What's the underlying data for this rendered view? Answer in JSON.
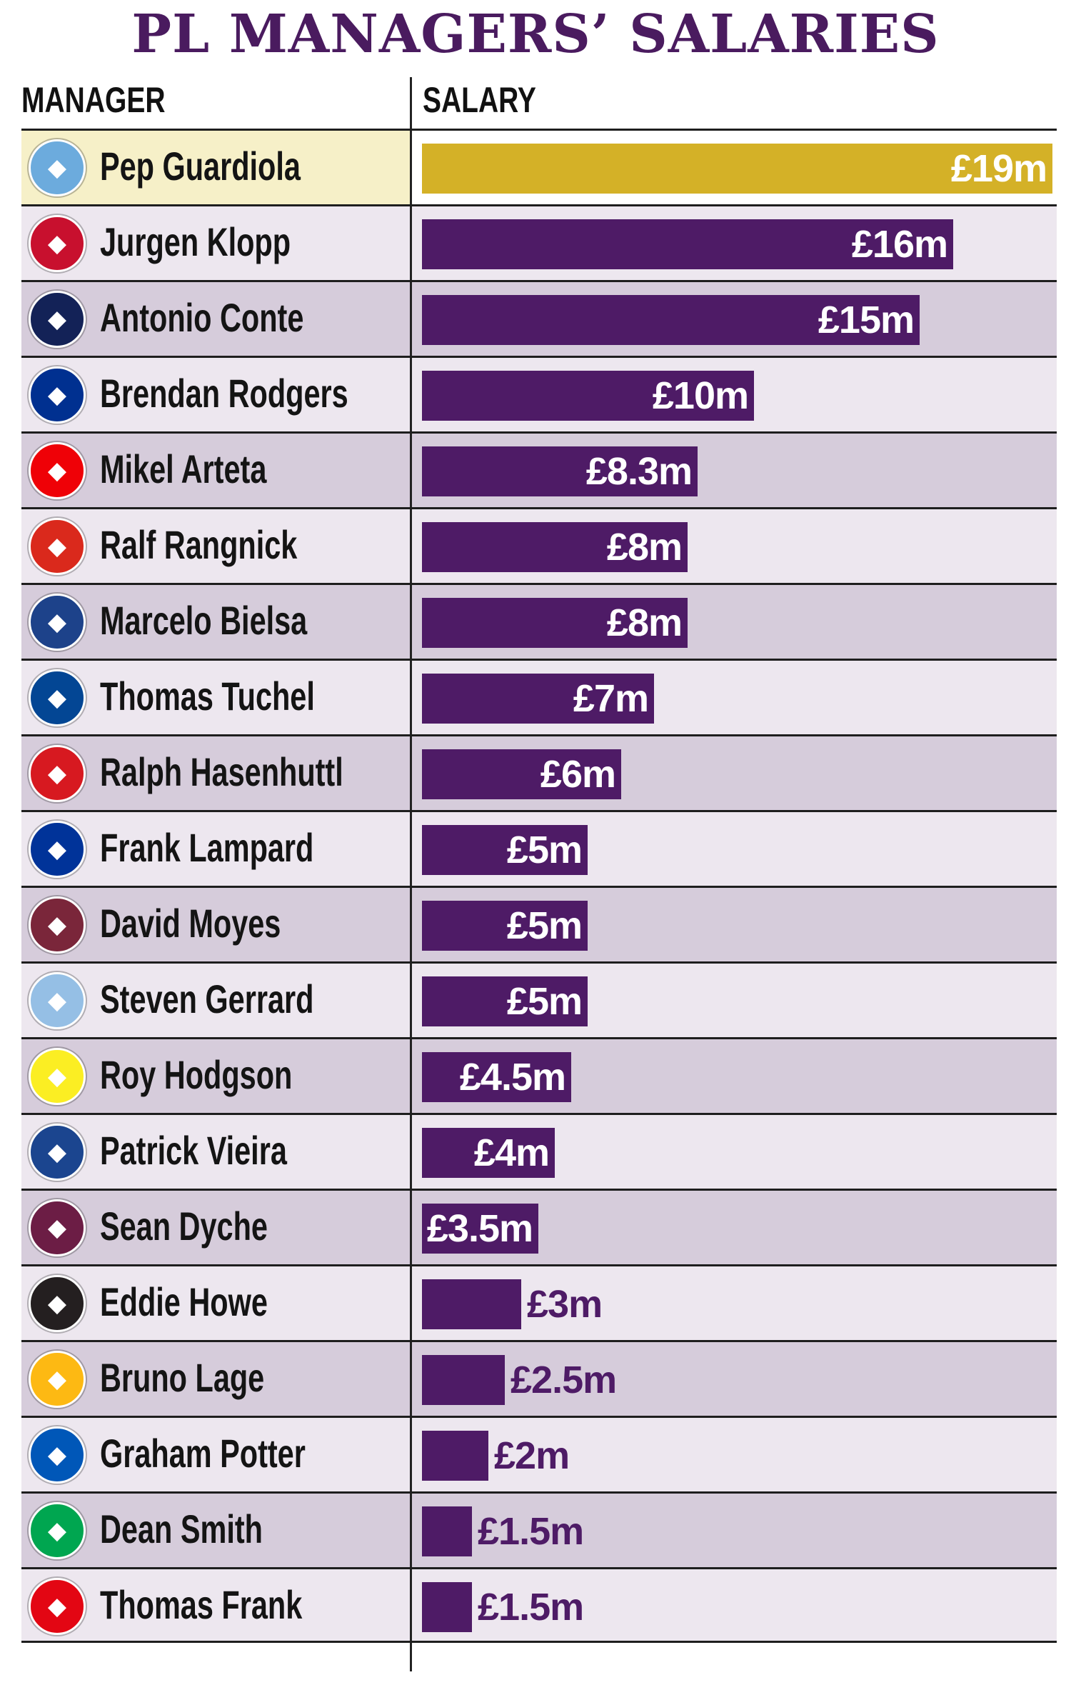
{
  "title": "PL MANAGERS’ SALARIES",
  "headers": {
    "manager": "MANAGER",
    "salary": "SALARY"
  },
  "colors": {
    "title": "#4a1b5f",
    "bar": "#4e1b66",
    "highlight_bar": "#d4b127",
    "highlight_row": "#f6f0c8",
    "row_light": "#ede7ef",
    "row_dark": "#d6ccdb"
  },
  "chart_data": {
    "type": "bar",
    "orientation": "horizontal",
    "title": "PL MANAGERS’ SALARIES",
    "unit": "£m",
    "xlim": [
      0,
      19
    ],
    "categories": [
      "Pep Guardiola",
      "Jurgen Klopp",
      "Antonio Conte",
      "Brendan Rodgers",
      "Mikel Arteta",
      "Ralf Rangnick",
      "Marcelo Bielsa",
      "Thomas Tuchel",
      "Ralph Hasenhuttl",
      "Frank Lampard",
      "David Moyes",
      "Steven Gerrard",
      "Roy Hodgson",
      "Patrick Vieira",
      "Sean Dyche",
      "Eddie Howe",
      "Bruno Lage",
      "Graham Potter",
      "Dean Smith",
      "Thomas Frank"
    ],
    "values": [
      19,
      16,
      15,
      10,
      8.3,
      8,
      8,
      7,
      6,
      5,
      5,
      5,
      4.5,
      4,
      3.5,
      3,
      2.5,
      2,
      1.5,
      1.5
    ],
    "labels": [
      "£19m",
      "£16m",
      "£15m",
      "£10m",
      "£8.3m",
      "£8m",
      "£8m",
      "£7m",
      "£6m",
      "£5m",
      "£5m",
      "£5m",
      "£4.5m",
      "£4m",
      "£3.5m",
      "£3m",
      "£2.5m",
      "£2m",
      "£1.5m",
      "£1.5m"
    ],
    "highlight_index": 0
  },
  "crests": [
    {
      "icon": "man-city-crest-icon",
      "color": "#6cabdd"
    },
    {
      "icon": "liverpool-crest-icon",
      "color": "#c8102e"
    },
    {
      "icon": "tottenham-crest-icon",
      "color": "#132257"
    },
    {
      "icon": "leicester-crest-icon",
      "color": "#003090"
    },
    {
      "icon": "arsenal-crest-icon",
      "color": "#ef0107"
    },
    {
      "icon": "man-utd-crest-icon",
      "color": "#da291c"
    },
    {
      "icon": "leeds-crest-icon",
      "color": "#1d428a"
    },
    {
      "icon": "chelsea-crest-icon",
      "color": "#034694"
    },
    {
      "icon": "southampton-crest-icon",
      "color": "#d71920"
    },
    {
      "icon": "everton-crest-icon",
      "color": "#003399"
    },
    {
      "icon": "west-ham-crest-icon",
      "color": "#7a263a"
    },
    {
      "icon": "aston-villa-crest-icon",
      "color": "#95bfe5"
    },
    {
      "icon": "watford-crest-icon",
      "color": "#fbee23"
    },
    {
      "icon": "crystal-palace-crest-icon",
      "color": "#1b458f"
    },
    {
      "icon": "burnley-crest-icon",
      "color": "#6c1d45"
    },
    {
      "icon": "newcastle-crest-icon",
      "color": "#241f20"
    },
    {
      "icon": "wolves-crest-icon",
      "color": "#fdb913"
    },
    {
      "icon": "brighton-crest-icon",
      "color": "#0057b8"
    },
    {
      "icon": "norwich-crest-icon",
      "color": "#00a650"
    },
    {
      "icon": "brentford-crest-icon",
      "color": "#e30613"
    }
  ]
}
